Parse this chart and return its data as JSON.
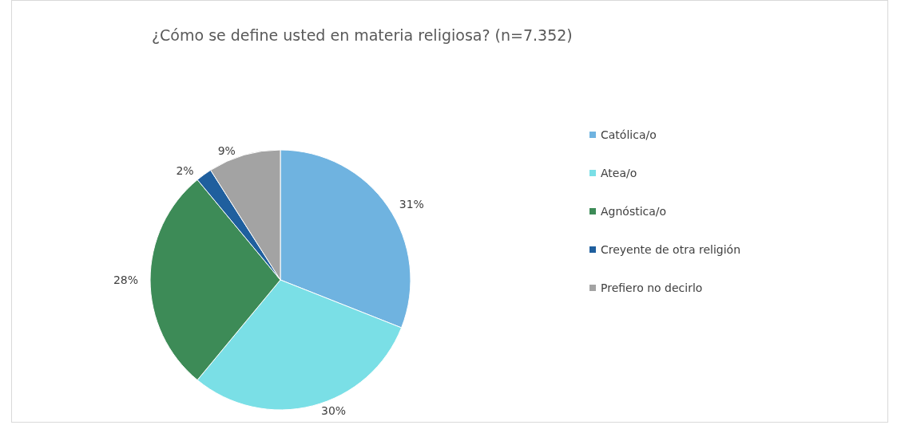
{
  "chart_data": {
    "type": "pie",
    "title": "¿Cómo se define usted en materia religiosa? (n=7.352)",
    "categories": [
      "Católica/o",
      "Atea/o",
      "Agnóstica/o",
      "Creyente de otra religión",
      "Prefiero no decirlo"
    ],
    "values": [
      31,
      30,
      28,
      2,
      9
    ],
    "colors": [
      "#6fb3e0",
      "#7adfe6",
      "#3d8b57",
      "#1f5f9e",
      "#a3a3a3"
    ],
    "value_labels": [
      "31%",
      "30%",
      "28%",
      "2%",
      "9%"
    ],
    "legend": "right"
  }
}
